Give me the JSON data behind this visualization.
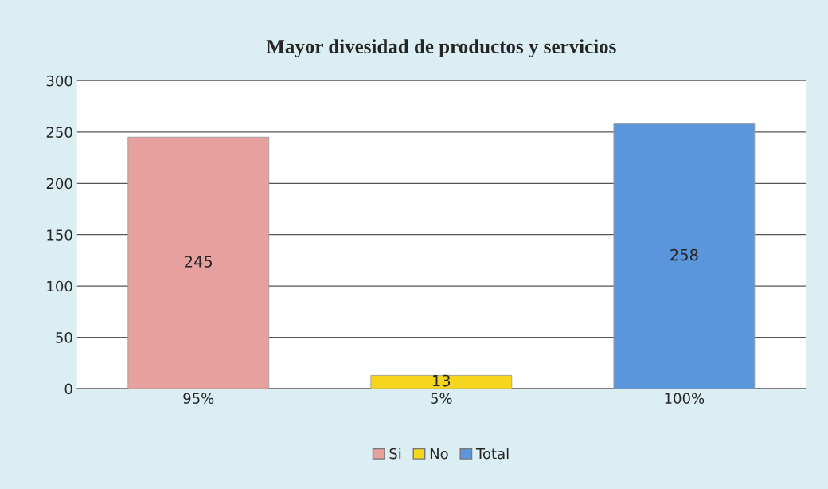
{
  "chart_data": {
    "type": "bar",
    "title": "Mayor divesidad de productos y servicios",
    "categories": [
      "95%",
      "5%",
      "100%"
    ],
    "series": [
      {
        "name": "Si",
        "color": "#e6a09e",
        "values": [
          245,
          null,
          null
        ]
      },
      {
        "name": "No",
        "color": "#f5d61c",
        "values": [
          null,
          13,
          null
        ]
      },
      {
        "name": "Total",
        "color": "#5b96dd",
        "values": [
          null,
          null,
          258
        ]
      }
    ],
    "ylim": [
      0,
      300
    ],
    "yticks": [
      0,
      50,
      100,
      150,
      200,
      250,
      300
    ],
    "grid": "y",
    "legend": "bottom",
    "data_labels": true
  }
}
